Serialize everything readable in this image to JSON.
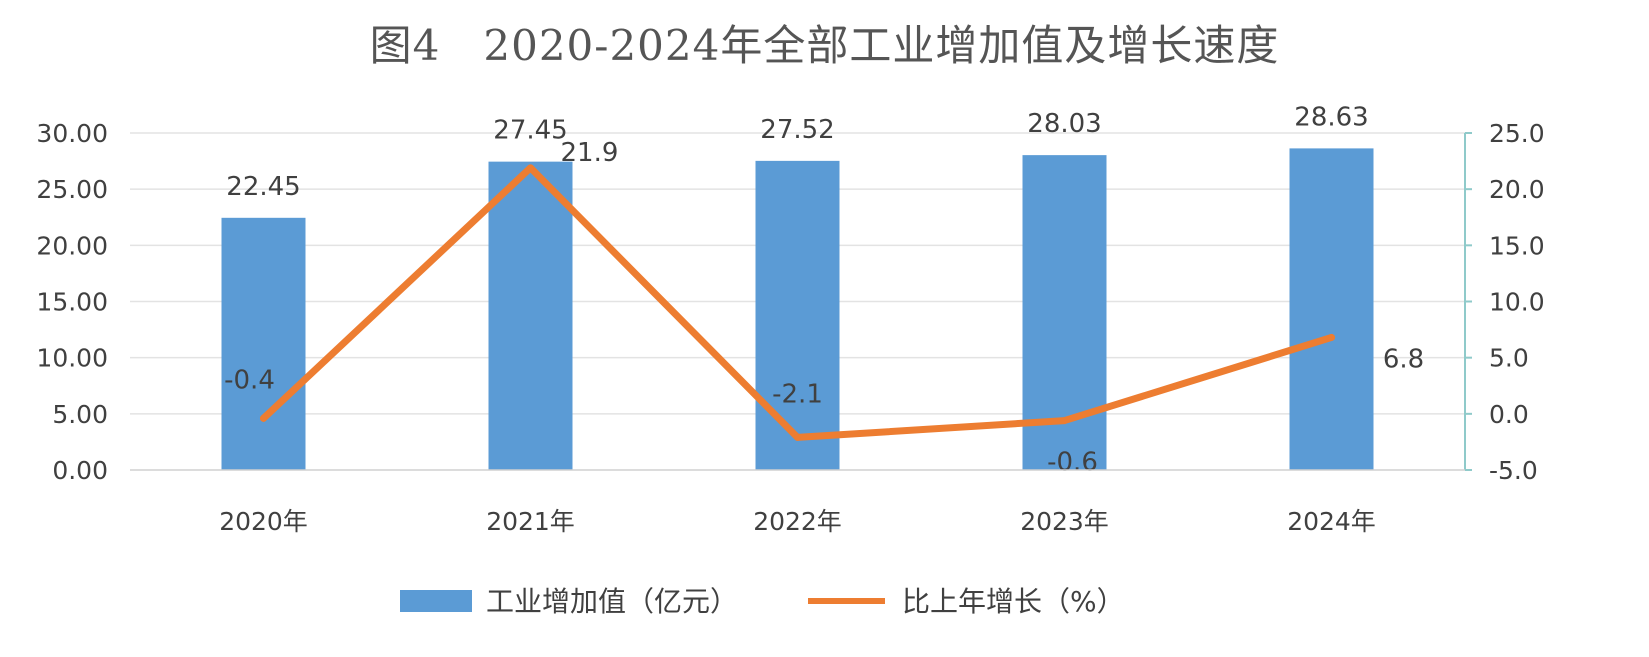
{
  "chart_data": {
    "type": "bar",
    "title": "图4　2020-2024年全部工业增加值及增长速度",
    "categories": [
      "2020年",
      "2021年",
      "2022年",
      "2023年",
      "2024年"
    ],
    "series": [
      {
        "name": "工业增加值（亿元）",
        "type": "bar",
        "axis": "left",
        "color": "#5b9bd5",
        "values": [
          22.45,
          27.45,
          27.52,
          28.03,
          28.63
        ],
        "labels": [
          "22.45",
          "27.45",
          "27.52",
          "28.03",
          "28.63"
        ]
      },
      {
        "name": "比上年增长（%）",
        "type": "line",
        "axis": "right",
        "color": "#ed7d31",
        "values": [
          -0.4,
          21.9,
          -2.1,
          -0.6,
          6.8
        ],
        "labels": [
          "-0.4",
          "21.9",
          "-2.1",
          "-0.6",
          "6.8"
        ]
      }
    ],
    "y_left": {
      "min": 0,
      "max": 30,
      "ticks": [
        "0.00",
        "5.00",
        "10.00",
        "15.00",
        "20.00",
        "25.00",
        "30.00"
      ]
    },
    "y_right": {
      "min": -5,
      "max": 25,
      "ticks": [
        "-5.0",
        "0.0",
        "5.0",
        "10.0",
        "15.0",
        "20.0",
        "25.0"
      ]
    },
    "grid": true,
    "legend_position": "bottom"
  }
}
